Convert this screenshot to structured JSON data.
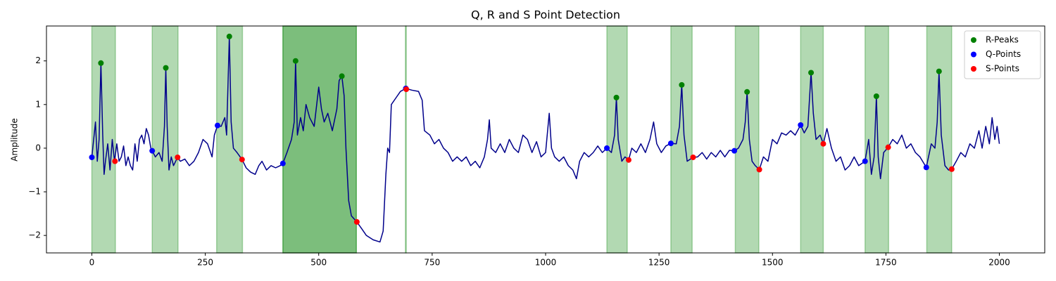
{
  "chart_data": {
    "type": "line",
    "title": "Q, R and S Point Detection",
    "ylabel": "Amplitude",
    "xlim": [
      -100,
      2100
    ],
    "ylim": [
      -2.4,
      2.8
    ],
    "xticks": [
      0,
      250,
      500,
      750,
      1000,
      1250,
      1500,
      1750,
      2000
    ],
    "yticks": [
      {
        "value": -2,
        "label": "−2"
      },
      {
        "value": -1,
        "label": "−1"
      },
      0,
      1,
      2
    ],
    "legend": "upper right",
    "span_color": "#008000",
    "spans": [
      [
        0,
        52
      ],
      [
        133,
        190
      ],
      [
        275,
        332
      ],
      [
        421,
        583
      ],
      [
        421,
        583
      ],
      [
        691,
        693
      ],
      [
        1135,
        1180
      ],
      [
        1276,
        1323
      ],
      [
        1418,
        1470
      ],
      [
        1562,
        1612
      ],
      [
        1704,
        1756
      ],
      [
        1840,
        1895
      ]
    ],
    "line": {
      "color": "#00008b",
      "x": [
        0,
        8,
        12,
        16,
        20,
        24,
        27,
        30,
        35,
        40,
        45,
        50,
        55,
        60,
        65,
        70,
        75,
        80,
        85,
        90,
        95,
        100,
        105,
        110,
        115,
        120,
        125,
        130,
        133,
        140,
        148,
        155,
        160,
        163,
        166,
        170,
        175,
        180,
        189,
        195,
        205,
        215,
        225,
        235,
        245,
        255,
        265,
        270,
        277,
        285,
        293,
        297,
        303,
        307,
        312,
        320,
        331,
        340,
        350,
        360,
        368,
        375,
        385,
        395,
        405,
        415,
        421,
        430,
        440,
        446,
        449,
        453,
        460,
        466,
        472,
        480,
        490,
        500,
        506,
        512,
        520,
        530,
        540,
        545,
        551,
        556,
        560,
        566,
        572,
        584,
        595,
        605,
        620,
        635,
        642,
        648,
        652,
        656,
        660,
        670,
        680,
        692,
        705,
        720,
        728,
        733,
        745,
        755,
        765,
        775,
        785,
        795,
        805,
        815,
        825,
        835,
        845,
        855,
        865,
        872,
        876,
        880,
        890,
        900,
        910,
        920,
        930,
        940,
        950,
        960,
        970,
        980,
        990,
        1000,
        1008,
        1013,
        1020,
        1030,
        1040,
        1050,
        1060,
        1068,
        1075,
        1085,
        1095,
        1105,
        1115,
        1125,
        1135,
        1145,
        1152,
        1156,
        1160,
        1168,
        1175,
        1183,
        1190,
        1200,
        1210,
        1220,
        1230,
        1238,
        1245,
        1255,
        1265,
        1276,
        1288,
        1295,
        1300,
        1305,
        1312,
        1325,
        1335,
        1345,
        1355,
        1365,
        1375,
        1385,
        1395,
        1405,
        1416,
        1425,
        1435,
        1440,
        1444,
        1449,
        1455,
        1462,
        1471,
        1480,
        1490,
        1500,
        1510,
        1520,
        1530,
        1540,
        1550,
        1562,
        1570,
        1578,
        1585,
        1590,
        1596,
        1605,
        1612,
        1620,
        1630,
        1640,
        1650,
        1660,
        1670,
        1680,
        1690,
        1704,
        1712,
        1718,
        1724,
        1729,
        1733,
        1738,
        1745,
        1755,
        1765,
        1775,
        1785,
        1795,
        1805,
        1815,
        1825,
        1839,
        1850,
        1858,
        1863,
        1867,
        1872,
        1880,
        1888,
        1895,
        1905,
        1915,
        1925,
        1935,
        1945,
        1955,
        1962,
        1970,
        1978,
        1984,
        1990,
        1995,
        2000
      ],
      "values": [
        -0.21,
        0.6,
        -0.3,
        0.2,
        1.95,
        0.3,
        -0.6,
        -0.3,
        0.1,
        -0.5,
        0.2,
        -0.3,
        0.1,
        -0.3,
        -0.2,
        0.05,
        -0.4,
        -0.2,
        -0.4,
        -0.5,
        0.1,
        -0.3,
        0.2,
        0.3,
        0.1,
        0.45,
        0.3,
        0.0,
        -0.06,
        -0.2,
        -0.1,
        -0.3,
        0.5,
        1.84,
        0.5,
        -0.5,
        -0.2,
        -0.4,
        -0.21,
        -0.3,
        -0.25,
        -0.4,
        -0.3,
        -0.1,
        0.2,
        0.1,
        -0.2,
        0.3,
        0.52,
        0.5,
        0.7,
        0.3,
        2.56,
        0.6,
        0.0,
        -0.1,
        -0.26,
        -0.45,
        -0.55,
        -0.6,
        -0.4,
        -0.3,
        -0.5,
        -0.4,
        -0.45,
        -0.4,
        -0.35,
        -0.1,
        0.2,
        0.6,
        2.0,
        0.3,
        0.7,
        0.4,
        1.0,
        0.7,
        0.5,
        1.4,
        0.9,
        0.6,
        0.8,
        0.4,
        0.9,
        1.55,
        1.65,
        1.2,
        0.0,
        -1.2,
        -1.55,
        -1.69,
        -1.85,
        -2.0,
        -2.1,
        -2.15,
        -1.9,
        -0.6,
        0.0,
        -0.1,
        1.0,
        1.15,
        1.3,
        1.37,
        1.33,
        1.3,
        1.1,
        0.4,
        0.3,
        0.1,
        0.2,
        0.0,
        -0.1,
        -0.3,
        -0.2,
        -0.3,
        -0.2,
        -0.4,
        -0.3,
        -0.45,
        -0.2,
        0.2,
        0.65,
        0.0,
        -0.1,
        0.1,
        -0.1,
        0.2,
        0.0,
        -0.1,
        0.3,
        0.2,
        -0.1,
        0.15,
        -0.2,
        -0.1,
        0.8,
        0.0,
        -0.2,
        -0.3,
        -0.2,
        -0.4,
        -0.5,
        -0.7,
        -0.3,
        -0.1,
        -0.2,
        -0.1,
        0.05,
        -0.1,
        0.0,
        -0.1,
        0.3,
        1.16,
        0.2,
        -0.3,
        -0.2,
        -0.27,
        0.0,
        -0.1,
        0.1,
        -0.1,
        0.2,
        0.6,
        0.1,
        -0.1,
        0.05,
        0.11,
        0.1,
        0.5,
        1.45,
        0.3,
        -0.3,
        -0.21,
        -0.2,
        -0.1,
        -0.25,
        -0.1,
        -0.2,
        -0.05,
        -0.2,
        -0.05,
        -0.06,
        0.0,
        0.2,
        0.6,
        1.29,
        0.2,
        -0.3,
        -0.4,
        -0.49,
        -0.2,
        -0.3,
        0.2,
        0.1,
        0.35,
        0.3,
        0.4,
        0.3,
        0.53,
        0.35,
        0.5,
        1.73,
        0.8,
        0.2,
        0.3,
        0.1,
        0.45,
        0.0,
        -0.3,
        -0.2,
        -0.5,
        -0.4,
        -0.2,
        -0.4,
        -0.3,
        0.2,
        -0.6,
        -0.2,
        1.19,
        -0.2,
        -0.7,
        -0.1,
        0.02,
        0.2,
        0.1,
        0.3,
        0.0,
        0.1,
        -0.1,
        -0.2,
        -0.44,
        0.1,
        0.0,
        0.6,
        1.76,
        0.3,
        -0.4,
        -0.5,
        -0.48,
        -0.3,
        -0.1,
        -0.2,
        0.1,
        0.0,
        0.4,
        0.0,
        0.5,
        0.1,
        0.7,
        0.2,
        0.5,
        0.1
      ]
    },
    "series": [
      {
        "name": "R-Peaks",
        "color": "#008000",
        "x": [
          20,
          163,
          303,
          449,
          551,
          1156,
          1300,
          1444,
          1585,
          1729,
          1867
        ],
        "values": [
          1.95,
          1.84,
          2.56,
          2.0,
          1.65,
          1.16,
          1.45,
          1.29,
          1.73,
          1.19,
          1.76
        ]
      },
      {
        "name": "Q-Points",
        "color": "#0000ff",
        "x": [
          0,
          133,
          277,
          421,
          692,
          1135,
          1276,
          1416,
          1562,
          1704,
          1839
        ],
        "values": [
          -0.21,
          -0.06,
          0.52,
          -0.35,
          1.37,
          0.0,
          0.11,
          -0.06,
          0.53,
          -0.3,
          -0.44
        ]
      },
      {
        "name": "S-Points",
        "color": "#ff0000",
        "x": [
          51,
          189,
          331,
          584,
          693,
          1183,
          1325,
          1471,
          1612,
          1755,
          1895
        ],
        "values": [
          -0.3,
          -0.21,
          -0.26,
          -1.69,
          1.35,
          -0.27,
          -0.21,
          -0.49,
          0.1,
          0.02,
          -0.48
        ]
      }
    ]
  }
}
